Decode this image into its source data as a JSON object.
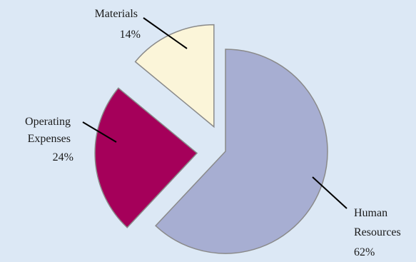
{
  "chart_data": {
    "type": "pie",
    "exploded": true,
    "slices": [
      {
        "name_lines": [
          "Human",
          "Resources"
        ],
        "value": 62,
        "value_label": "62%",
        "color": "#a7aed2"
      },
      {
        "name_lines": [
          "Operating",
          "Expenses"
        ],
        "value": 24,
        "value_label": "24%",
        "color": "#a5005a"
      },
      {
        "name_lines": [
          "Materials"
        ],
        "value": 14,
        "value_label": "14%",
        "color": "#fbf5d9"
      }
    ],
    "slice_outline_color": "#8a8a8a",
    "leader_line_color": "#000000"
  }
}
